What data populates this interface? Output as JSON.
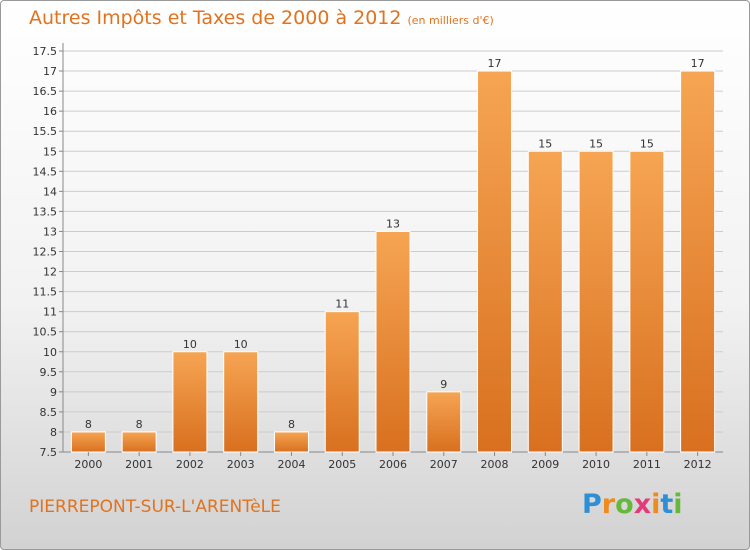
{
  "header": {
    "title": "Autres Impôts et Taxes de 2000 à 2012",
    "unit": "(en milliers d'€)"
  },
  "footer": {
    "city": "PIERREPONT-SUR-L'ARENTèLE",
    "logo": "Proxiti",
    "logo_colors": [
      "#2f8fd6",
      "#f08a1c",
      "#66b83a",
      "#e23b7a",
      "#f08a1c",
      "#2f8fd6",
      "#66b83a"
    ]
  },
  "colors": {
    "accent": "#e0731f",
    "bar_top": "#f6a553",
    "bar_bottom": "#d8701f",
    "axis": "#888888",
    "grid": "#cccccc",
    "label": "#333333"
  },
  "chart_data": {
    "type": "bar",
    "categories": [
      "2000",
      "2001",
      "2002",
      "2003",
      "2004",
      "2005",
      "2006",
      "2007",
      "2008",
      "2009",
      "2010",
      "2011",
      "2012"
    ],
    "values": [
      8,
      8,
      10,
      10,
      8,
      11,
      13,
      9,
      17,
      15,
      15,
      15,
      17
    ],
    "data_labels": [
      "8",
      "8",
      "10",
      "10",
      "8",
      "11",
      "13",
      "9",
      "17",
      "15",
      "15",
      "15",
      "17"
    ],
    "ylim": [
      7.5,
      17.5
    ],
    "yticks": [
      7.5,
      8,
      8.5,
      9,
      9.5,
      10,
      10.5,
      11,
      11.5,
      12,
      12.5,
      13,
      13.5,
      14,
      14.5,
      15,
      15.5,
      16,
      16.5,
      17,
      17.5
    ],
    "ytick_labels": [
      "7.5",
      "8",
      "8.5",
      "9",
      "9.5",
      "10",
      "10.5",
      "11",
      "11.5",
      "12",
      "12.5",
      "13",
      "13.5",
      "14",
      "14.5",
      "15",
      "15.5",
      "16",
      "16.5",
      "17",
      "17.5"
    ],
    "grid": true,
    "legend": "none"
  }
}
